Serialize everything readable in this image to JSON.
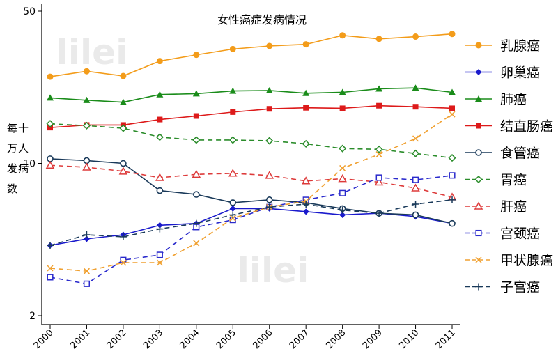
{
  "chart_data": {
    "type": "line",
    "title": "女性癌症发病情况",
    "ylabel": "每十万人发病数",
    "xlabel": "",
    "yscale": "log",
    "ylim": [
      2,
      50
    ],
    "yticks": [
      2,
      10,
      50
    ],
    "x": [
      "2000",
      "2001",
      "2002",
      "2003",
      "2004",
      "2005",
      "2006",
      "2007",
      "2008",
      "2009",
      "2010",
      "2011"
    ],
    "legend_position": "right",
    "grid": false,
    "series": [
      {
        "name": "乳腺癌",
        "color": "#f39c1a",
        "marker": "circle-filled",
        "dashed": false,
        "values": [
          25.0,
          26.5,
          25.2,
          29.5,
          31.5,
          33.5,
          34.6,
          35.2,
          38.7,
          37.3,
          38.2,
          39.3
        ]
      },
      {
        "name": "卵巢癌",
        "color": "#1a1acc",
        "marker": "diamond-filled",
        "dashed": false,
        "values": [
          4.2,
          4.5,
          4.7,
          5.2,
          5.3,
          6.2,
          6.2,
          6.0,
          5.8,
          5.9,
          5.7,
          5.3
        ]
      },
      {
        "name": "肺癌",
        "color": "#1a8c1a",
        "marker": "triangle-filled",
        "dashed": false,
        "values": [
          20.0,
          19.5,
          19.1,
          20.7,
          20.9,
          21.5,
          21.6,
          21.0,
          21.2,
          22.0,
          22.2,
          21.2
        ]
      },
      {
        "name": "结直肠癌",
        "color": "#dd1a1a",
        "marker": "square-filled",
        "dashed": false,
        "values": [
          14.6,
          15.0,
          15.0,
          15.9,
          16.5,
          17.2,
          17.8,
          18.0,
          17.9,
          18.4,
          18.2,
          17.9
        ]
      },
      {
        "name": "食管癌",
        "color": "#1a3a5a",
        "marker": "circle-open",
        "dashed": false,
        "values": [
          10.5,
          10.3,
          10.0,
          7.5,
          7.2,
          6.6,
          6.8,
          6.6,
          6.2,
          5.9,
          5.8,
          5.3
        ]
      },
      {
        "name": "胃癌",
        "color": "#2a8c2a",
        "marker": "diamond-open",
        "dashed": true,
        "values": [
          15.2,
          14.9,
          14.5,
          13.2,
          12.8,
          12.8,
          12.7,
          12.3,
          11.7,
          11.6,
          11.1,
          10.6
        ]
      },
      {
        "name": "肝癌",
        "color": "#dd3a3a",
        "marker": "triangle-open",
        "dashed": true,
        "values": [
          9.8,
          9.6,
          9.2,
          8.6,
          8.9,
          9.0,
          8.8,
          8.3,
          8.5,
          8.2,
          7.7,
          7.0
        ]
      },
      {
        "name": "宫颈癌",
        "color": "#2a2acc",
        "marker": "square-open",
        "dashed": true,
        "values": [
          3.0,
          2.8,
          3.6,
          3.8,
          5.1,
          5.5,
          6.3,
          6.8,
          7.3,
          8.6,
          8.4,
          8.8
        ]
      },
      {
        "name": "甲状腺癌",
        "color": "#f0a030",
        "marker": "x",
        "dashed": true,
        "values": [
          3.3,
          3.2,
          3.5,
          3.5,
          4.3,
          5.6,
          6.3,
          6.7,
          9.5,
          11.0,
          13.0,
          16.8
        ]
      },
      {
        "name": "子宫癌",
        "color": "#1a3a5a",
        "marker": "plus",
        "dashed": true,
        "values": [
          4.2,
          4.7,
          4.6,
          5.0,
          5.3,
          5.8,
          6.3,
          6.5,
          6.1,
          5.9,
          6.5,
          6.8
        ]
      }
    ]
  },
  "watermark": "lilei",
  "colors": {
    "axis": "#000000",
    "watermark": "#e8e8e8",
    "background": "#ffffff"
  }
}
